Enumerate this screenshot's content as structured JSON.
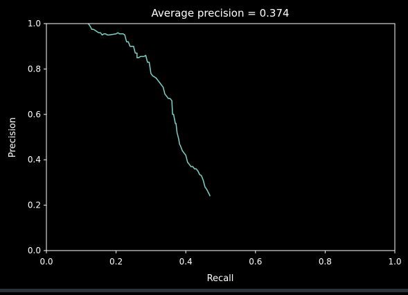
{
  "chart_data": {
    "type": "line",
    "title": "Average precision = 0.374",
    "xlabel": "Recall",
    "ylabel": "Precision",
    "xlim": [
      0.0,
      1.0
    ],
    "ylim": [
      0.0,
      1.0
    ],
    "xticks": [
      "0.0",
      "0.2",
      "0.4",
      "0.6",
      "0.8",
      "1.0"
    ],
    "yticks": [
      "0.0",
      "0.2",
      "0.4",
      "0.6",
      "0.8",
      "1.0"
    ],
    "grid": false,
    "series": [
      {
        "color": "#7fd3c6",
        "x": [
          0.12,
          0.125,
          0.13,
          0.135,
          0.14,
          0.15,
          0.155,
          0.16,
          0.165,
          0.17,
          0.175,
          0.18,
          0.2,
          0.205,
          0.21,
          0.22,
          0.225,
          0.23,
          0.235,
          0.24,
          0.245,
          0.25,
          0.255,
          0.26,
          0.26,
          0.265,
          0.27,
          0.28,
          0.285,
          0.29,
          0.295,
          0.3,
          0.305,
          0.31,
          0.315,
          0.32,
          0.325,
          0.33,
          0.335,
          0.34,
          0.345,
          0.35,
          0.355,
          0.36,
          0.362,
          0.365,
          0.37,
          0.372,
          0.375,
          0.38,
          0.382,
          0.385,
          0.39,
          0.395,
          0.4,
          0.405,
          0.41,
          0.415,
          0.42,
          0.425,
          0.43,
          0.435,
          0.44,
          0.445,
          0.45,
          0.455,
          0.46,
          0.465,
          0.47
        ],
        "y": [
          1.0,
          0.99,
          0.975,
          0.975,
          0.97,
          0.96,
          0.96,
          0.95,
          0.955,
          0.955,
          0.95,
          0.95,
          0.955,
          0.96,
          0.955,
          0.955,
          0.95,
          0.92,
          0.92,
          0.9,
          0.9,
          0.9,
          0.87,
          0.87,
          0.85,
          0.85,
          0.855,
          0.855,
          0.86,
          0.83,
          0.83,
          0.78,
          0.77,
          0.765,
          0.76,
          0.75,
          0.74,
          0.73,
          0.72,
          0.69,
          0.68,
          0.67,
          0.67,
          0.66,
          0.6,
          0.6,
          0.56,
          0.56,
          0.52,
          0.49,
          0.47,
          0.46,
          0.44,
          0.43,
          0.42,
          0.39,
          0.38,
          0.37,
          0.37,
          0.36,
          0.36,
          0.35,
          0.335,
          0.33,
          0.31,
          0.28,
          0.27,
          0.255,
          0.24
        ]
      }
    ]
  }
}
